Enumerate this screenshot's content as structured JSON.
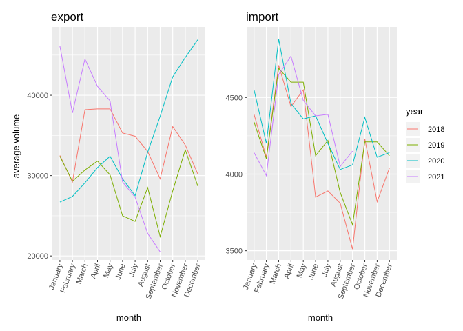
{
  "shared": {
    "x_label": "month",
    "y_label": "average volume",
    "months": [
      "January",
      "February",
      "March",
      "April",
      "May",
      "June",
      "July",
      "August",
      "September",
      "October",
      "November",
      "December"
    ],
    "legend": {
      "title": "year",
      "placement": "right",
      "items": [
        {
          "name": "2018",
          "color": "#F8766D"
        },
        {
          "name": "2019",
          "color": "#7CAE00"
        },
        {
          "name": "2020",
          "color": "#00BFC4"
        },
        {
          "name": "2021",
          "color": "#C77CFF"
        }
      ]
    }
  },
  "chart_data": [
    {
      "type": "line",
      "title": "export",
      "xlabel": "month",
      "ylabel": "average volume",
      "ylim": [
        19500,
        48500
      ],
      "yticks": [
        20000,
        30000,
        40000
      ],
      "ytick_labels": [
        "20000",
        "30000",
        "40000"
      ],
      "grid": true,
      "categories": [
        "January",
        "February",
        "March",
        "April",
        "May",
        "June",
        "July",
        "August",
        "September",
        "October",
        "November",
        "December"
      ],
      "series": [
        {
          "name": "2018",
          "color": "#F8766D",
          "values": [
            32500,
            29200,
            38200,
            38300,
            38300,
            35300,
            34900,
            33000,
            29600,
            36100,
            33800,
            30200
          ]
        },
        {
          "name": "2019",
          "color": "#7CAE00",
          "values": [
            32400,
            29300,
            30700,
            31800,
            30100,
            25000,
            24300,
            28500,
            22400,
            28100,
            33200,
            28700
          ]
        },
        {
          "name": "2020",
          "color": "#00BFC4",
          "values": [
            26700,
            27400,
            29100,
            31000,
            32400,
            29600,
            27500,
            32900,
            37400,
            42300,
            44700,
            46900
          ]
        },
        {
          "name": "2021",
          "color": "#C77CFF",
          "values": [
            46100,
            37800,
            44500,
            41100,
            39300,
            29200,
            27300,
            22800,
            20500,
            null,
            null,
            null
          ]
        }
      ]
    },
    {
      "type": "line",
      "title": "import",
      "xlabel": "month",
      "ylabel": "",
      "ylim": [
        3440,
        4960
      ],
      "yticks": [
        3500,
        4000,
        4500
      ],
      "ytick_labels": [
        "3500",
        "4000",
        "4500"
      ],
      "grid": true,
      "categories": [
        "January",
        "February",
        "March",
        "April",
        "May",
        "June",
        "July",
        "August",
        "September",
        "October",
        "November",
        "December"
      ],
      "series": [
        {
          "name": "2018",
          "color": "#F8766D",
          "values": [
            4390,
            4110,
            4710,
            4440,
            4550,
            3850,
            3890,
            3810,
            3510,
            4230,
            3820,
            4040
          ]
        },
        {
          "name": "2019",
          "color": "#7CAE00",
          "values": [
            4340,
            4100,
            4690,
            4600,
            4600,
            4120,
            4220,
            3880,
            3670,
            4210,
            4210,
            4120
          ]
        },
        {
          "name": "2020",
          "color": "#00BFC4",
          "values": [
            4550,
            4200,
            4880,
            4460,
            4360,
            4380,
            4200,
            4030,
            4060,
            4370,
            4110,
            4140
          ]
        },
        {
          "name": "2021",
          "color": "#C77CFF",
          "values": [
            4140,
            3990,
            4650,
            4770,
            4480,
            4380,
            4390,
            4050,
            4150,
            null,
            null,
            null
          ]
        }
      ]
    }
  ]
}
